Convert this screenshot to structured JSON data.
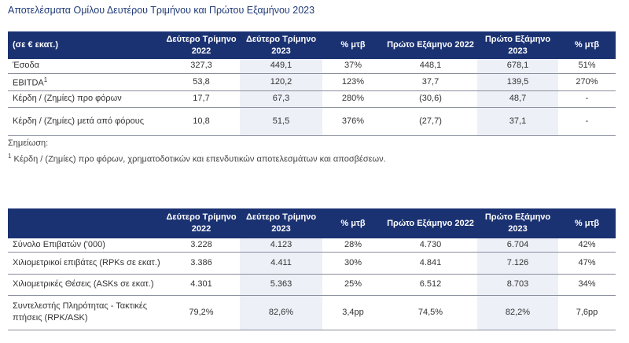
{
  "title": "Αποτελέσματα Ομίλου Δευτέρου Τριμήνου και Πρώτου Εξαμήνου 2023",
  "table1": {
    "headers": [
      "(σε € εκατ.)",
      "Δεύτερο Τρίμηνο 2022",
      "Δεύτερο Τρίμηνο 2023",
      "% μτβ",
      "Πρώτο Εξάμηνο 2022",
      "Πρώτο Εξάμηνο 2023",
      "% μτβ"
    ],
    "rows": [
      {
        "label": "Έσοδα",
        "sup": "",
        "values": [
          "327,3",
          "449,1",
          "37%",
          "448,1",
          "678,1",
          "51%"
        ]
      },
      {
        "label": "EBITDA",
        "sup": "1",
        "values": [
          "53,8",
          "120,2",
          "123%",
          "37,7",
          "139,5",
          "270%"
        ]
      },
      {
        "label": "Κέρδη / (Ζημίες) προ φόρων",
        "sup": "",
        "values": [
          "17,7",
          "67,3",
          "280%",
          "(30,6)",
          "48,7",
          "-"
        ]
      },
      {
        "label": "Κέρδη / (Ζημίες) μετά από φόρους",
        "sup": "",
        "values": [
          "10,8",
          "51,5",
          "376%",
          "(27,7)",
          "37,1",
          "-"
        ]
      }
    ]
  },
  "note_label": "Σημείωση:",
  "footnote_mark": "1",
  "footnote": "Κέρδη / (Ζημίες) προ φόρων, χρηματοδοτικών και επενδυτικών αποτελεσμάτων και αποσβέσεων.",
  "table2": {
    "headers": [
      "",
      "Δεύτερο Τρίμηνο 2022",
      "Δεύτερο Τρίμηνο 2023",
      "% μτβ",
      "Πρώτο Εξάμηνο 2022",
      "Πρώτο Εξάμηνο 2023",
      "% μτβ"
    ],
    "rows": [
      {
        "label": "Σύνολο Επιβατών ('000)",
        "sup": "",
        "values": [
          "3.228",
          "4.123",
          "28%",
          "4.730",
          "6.704",
          "42%"
        ]
      },
      {
        "label": "Χιλιομετρικοί επιβάτες (RPKs σε εκατ.)",
        "sup": "",
        "values": [
          "3.386",
          "4.411",
          "30%",
          "4.841",
          "7.126",
          "47%"
        ]
      },
      {
        "label": "Χιλιομετρικές Θέσεις (ASKs σε εκατ.)",
        "sup": "",
        "values": [
          "4.301",
          "5.363",
          "25%",
          "6.512",
          "8.703",
          "34%"
        ]
      },
      {
        "label": "Συντελεστής Πληρότητας - Τακτικές πτήσεις (RPK/ASK)",
        "sup": "",
        "values": [
          "79,2%",
          "82,6%",
          "3,4pp",
          "74,5%",
          "82,2%",
          "7,6pp"
        ]
      }
    ]
  },
  "colors": {
    "header": "#1b3272",
    "shade": "#edf0f7",
    "title": "#1f3a78"
  }
}
